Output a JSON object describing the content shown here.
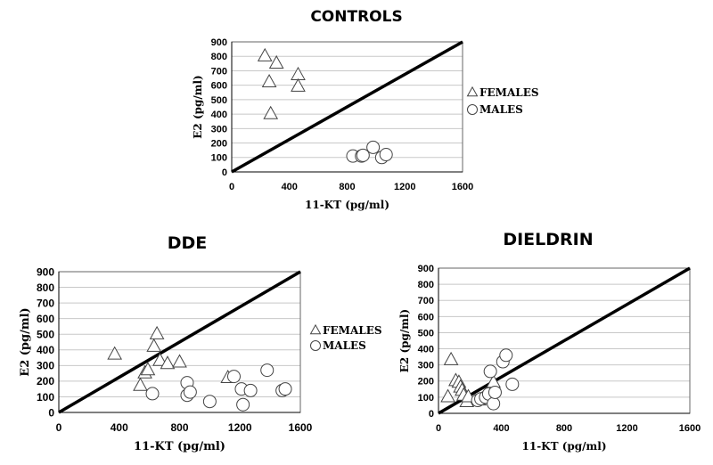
{
  "chart_data": [
    {
      "type": "scatter",
      "title": "CONTROLS",
      "xlabel": "11-KT (pg/ml)",
      "ylabel": "E2 (pg/ml)",
      "xlim": [
        0,
        1600
      ],
      "ylim": [
        0,
        900
      ],
      "xticks": [
        0,
        400,
        800,
        1200,
        1600
      ],
      "yticks": [
        0,
        100,
        200,
        300,
        400,
        500,
        600,
        700,
        800,
        900
      ],
      "grid": true,
      "reference_line": "y = 9/16 x (diagonal from origin to corner)",
      "legend": {
        "placement": "right",
        "entries": [
          "FEMALES",
          "MALES"
        ]
      },
      "series": [
        {
          "name": "FEMALES",
          "marker": "triangle",
          "points": [
            [
              230,
              800
            ],
            [
              310,
              750
            ],
            [
              460,
              670
            ],
            [
              460,
              590
            ],
            [
              260,
              620
            ],
            [
              270,
              400
            ]
          ]
        },
        {
          "name": "MALES",
          "marker": "circle",
          "points": [
            [
              840,
              110
            ],
            [
              900,
              110
            ],
            [
              910,
              115
            ],
            [
              980,
              170
            ],
            [
              1040,
              100
            ],
            [
              1070,
              120
            ]
          ]
        }
      ]
    },
    {
      "type": "scatter",
      "title": "DDE",
      "xlabel": "11-KT (pg/ml)",
      "ylabel": "E2 (pg/ml)",
      "xlim": [
        0,
        1600
      ],
      "ylim": [
        0,
        900
      ],
      "xticks": [
        0,
        400,
        800,
        1200,
        1600
      ],
      "yticks": [
        0,
        100,
        200,
        300,
        400,
        500,
        600,
        700,
        800,
        900
      ],
      "grid": true,
      "reference_line": "y = 9/16 x (diagonal from origin to corner)",
      "legend": {
        "placement": "right",
        "entries": [
          "FEMALES",
          "MALES"
        ]
      },
      "series": [
        {
          "name": "FEMALES",
          "marker": "triangle",
          "points": [
            [
              370,
              370
            ],
            [
              540,
              170
            ],
            [
              570,
              250
            ],
            [
              590,
              270
            ],
            [
              630,
              420
            ],
            [
              650,
              500
            ],
            [
              670,
              330
            ],
            [
              720,
              310
            ],
            [
              800,
              320
            ],
            [
              1120,
              220
            ]
          ]
        },
        {
          "name": "MALES",
          "marker": "circle",
          "points": [
            [
              620,
              120
            ],
            [
              850,
              190
            ],
            [
              850,
              110
            ],
            [
              870,
              130
            ],
            [
              1000,
              70
            ],
            [
              1160,
              230
            ],
            [
              1210,
              150
            ],
            [
              1220,
              50
            ],
            [
              1270,
              140
            ],
            [
              1380,
              270
            ],
            [
              1480,
              140
            ],
            [
              1500,
              150
            ]
          ]
        }
      ]
    },
    {
      "type": "scatter",
      "title": "DIELDRIN",
      "xlabel": "11-KT (pg/ml)",
      "ylabel": "E2 (pg/ml)",
      "xlim": [
        0,
        1600
      ],
      "ylim": [
        0,
        900
      ],
      "xticks": [
        0,
        400,
        800,
        1200,
        1600
      ],
      "yticks": [
        0,
        100,
        200,
        300,
        400,
        500,
        600,
        700,
        800,
        900
      ],
      "grid": true,
      "reference_line": "y = 9/16 x (diagonal from origin to corner)",
      "series": [
        {
          "name": "FEMALES",
          "marker": "triangle",
          "points": [
            [
              60,
              100
            ],
            [
              80,
              330
            ],
            [
              110,
              200
            ],
            [
              130,
              190
            ],
            [
              140,
              160
            ],
            [
              150,
              140
            ],
            [
              160,
              110
            ],
            [
              180,
              70
            ],
            [
              190,
              100
            ],
            [
              260,
              80
            ],
            [
              310,
              120
            ],
            [
              350,
              190
            ]
          ]
        },
        {
          "name": "MALES",
          "marker": "circle",
          "points": [
            [
              250,
              80
            ],
            [
              270,
              90
            ],
            [
              300,
              100
            ],
            [
              320,
              120
            ],
            [
              330,
              260
            ],
            [
              350,
              60
            ],
            [
              360,
              130
            ],
            [
              410,
              320
            ],
            [
              430,
              360
            ],
            [
              470,
              180
            ]
          ]
        }
      ]
    }
  ]
}
